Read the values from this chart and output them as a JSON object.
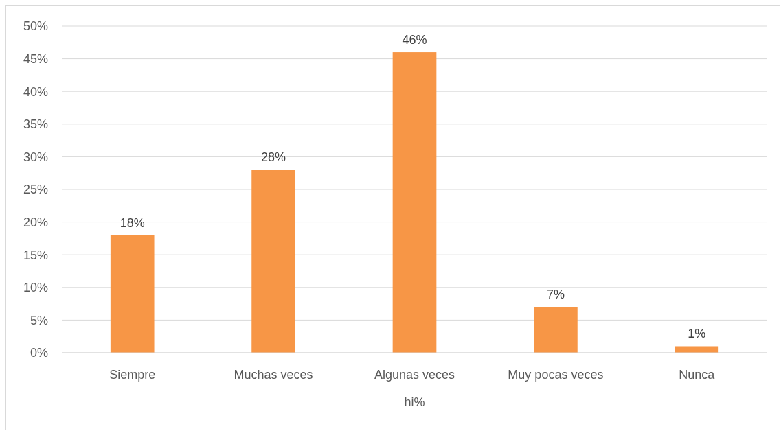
{
  "chart_data": {
    "type": "bar",
    "xlabel": "hi%",
    "categories": [
      "Siempre",
      "Muchas veces",
      "Algunas veces",
      "Muy pocas veces",
      "Nunca"
    ],
    "values": [
      18,
      28,
      46,
      7,
      1
    ],
    "color": "#f79646",
    "ylim": [
      0,
      50
    ],
    "yticks": [
      {
        "value": 0,
        "label": "0%"
      },
      {
        "value": 5,
        "label": "5%"
      },
      {
        "value": 10,
        "label": "10%"
      },
      {
        "value": 15,
        "label": "15%"
      },
      {
        "value": 20,
        "label": "20%"
      },
      {
        "value": 25,
        "label": "25%"
      },
      {
        "value": 30,
        "label": "30%"
      },
      {
        "value": 35,
        "label": "35%"
      },
      {
        "value": 40,
        "label": "40%"
      },
      {
        "value": 45,
        "label": "45%"
      },
      {
        "value": 50,
        "label": "50%"
      }
    ],
    "value_labels": [
      "18%",
      "28%",
      "46%",
      "7%",
      "1%"
    ],
    "grid": "y"
  }
}
